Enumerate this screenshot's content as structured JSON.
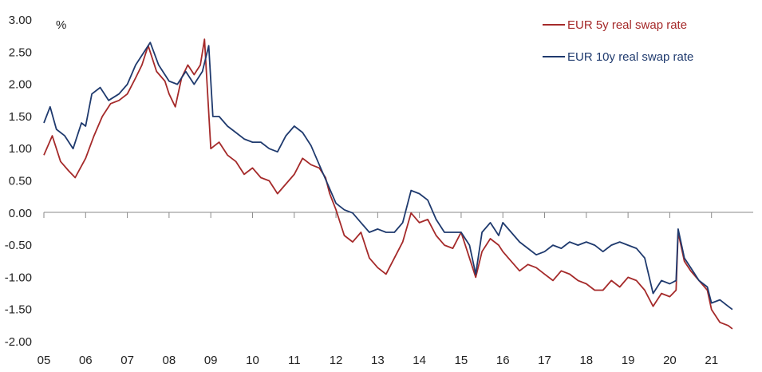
{
  "chart_data": {
    "type": "line",
    "unit_label": "%",
    "ylim": [
      -2.0,
      3.0
    ],
    "yticks": [
      3.0,
      2.5,
      2.0,
      1.5,
      1.0,
      0.5,
      0.0,
      -0.5,
      -1.0,
      -1.5,
      -2.0
    ],
    "ytick_labels": [
      "3.00",
      "2.50",
      "2.00",
      "1.50",
      "1.00",
      "0.50",
      "0.00",
      "-0.50",
      "-1.00",
      "-1.50",
      "-2.00"
    ],
    "xlim": [
      2005.0,
      2022.0
    ],
    "xticks": [
      2005,
      2006,
      2007,
      2008,
      2009,
      2010,
      2011,
      2012,
      2013,
      2014,
      2015,
      2016,
      2017,
      2018,
      2019,
      2020,
      2021
    ],
    "xtick_labels": [
      "05",
      "06",
      "07",
      "08",
      "09",
      "10",
      "11",
      "12",
      "13",
      "14",
      "15",
      "16",
      "17",
      "18",
      "19",
      "20",
      "21"
    ],
    "grid": false,
    "legend_position": "top-right",
    "series": [
      {
        "name": "EUR 5y real swap rate",
        "color": "#a52a2a",
        "points": [
          [
            2005.0,
            0.9
          ],
          [
            2005.2,
            1.2
          ],
          [
            2005.4,
            0.8
          ],
          [
            2005.6,
            0.65
          ],
          [
            2005.75,
            0.55
          ],
          [
            2006.0,
            0.85
          ],
          [
            2006.2,
            1.2
          ],
          [
            2006.4,
            1.5
          ],
          [
            2006.6,
            1.7
          ],
          [
            2006.8,
            1.75
          ],
          [
            2007.0,
            1.85
          ],
          [
            2007.2,
            2.1
          ],
          [
            2007.35,
            2.3
          ],
          [
            2007.5,
            2.6
          ],
          [
            2007.7,
            2.2
          ],
          [
            2007.9,
            2.05
          ],
          [
            2008.0,
            1.85
          ],
          [
            2008.15,
            1.65
          ],
          [
            2008.3,
            2.1
          ],
          [
            2008.45,
            2.3
          ],
          [
            2008.6,
            2.15
          ],
          [
            2008.75,
            2.3
          ],
          [
            2008.85,
            2.7
          ],
          [
            2009.0,
            1.0
          ],
          [
            2009.2,
            1.1
          ],
          [
            2009.4,
            0.9
          ],
          [
            2009.6,
            0.8
          ],
          [
            2009.8,
            0.6
          ],
          [
            2010.0,
            0.7
          ],
          [
            2010.2,
            0.55
          ],
          [
            2010.4,
            0.5
          ],
          [
            2010.6,
            0.3
          ],
          [
            2010.8,
            0.45
          ],
          [
            2011.0,
            0.6
          ],
          [
            2011.2,
            0.85
          ],
          [
            2011.4,
            0.75
          ],
          [
            2011.6,
            0.7
          ],
          [
            2011.75,
            0.55
          ],
          [
            2011.85,
            0.3
          ],
          [
            2012.0,
            0.05
          ],
          [
            2012.2,
            -0.35
          ],
          [
            2012.4,
            -0.45
          ],
          [
            2012.6,
            -0.3
          ],
          [
            2012.8,
            -0.7
          ],
          [
            2013.0,
            -0.85
          ],
          [
            2013.2,
            -0.95
          ],
          [
            2013.4,
            -0.7
          ],
          [
            2013.6,
            -0.45
          ],
          [
            2013.8,
            0.0
          ],
          [
            2014.0,
            -0.15
          ],
          [
            2014.2,
            -0.1
          ],
          [
            2014.4,
            -0.35
          ],
          [
            2014.6,
            -0.5
          ],
          [
            2014.8,
            -0.55
          ],
          [
            2015.0,
            -0.3
          ],
          [
            2015.2,
            -0.7
          ],
          [
            2015.35,
            -1.0
          ],
          [
            2015.5,
            -0.6
          ],
          [
            2015.7,
            -0.4
          ],
          [
            2015.9,
            -0.5
          ],
          [
            2016.0,
            -0.6
          ],
          [
            2016.2,
            -0.75
          ],
          [
            2016.4,
            -0.9
          ],
          [
            2016.6,
            -0.8
          ],
          [
            2016.8,
            -0.85
          ],
          [
            2017.0,
            -0.95
          ],
          [
            2017.2,
            -1.05
          ],
          [
            2017.4,
            -0.9
          ],
          [
            2017.6,
            -0.95
          ],
          [
            2017.8,
            -1.05
          ],
          [
            2018.0,
            -1.1
          ],
          [
            2018.2,
            -1.2
          ],
          [
            2018.4,
            -1.2
          ],
          [
            2018.6,
            -1.05
          ],
          [
            2018.8,
            -1.15
          ],
          [
            2019.0,
            -1.0
          ],
          [
            2019.2,
            -1.05
          ],
          [
            2019.4,
            -1.2
          ],
          [
            2019.6,
            -1.45
          ],
          [
            2019.8,
            -1.25
          ],
          [
            2020.0,
            -1.3
          ],
          [
            2020.15,
            -1.2
          ],
          [
            2020.2,
            -0.3
          ],
          [
            2020.35,
            -0.75
          ],
          [
            2020.5,
            -0.9
          ],
          [
            2020.7,
            -1.05
          ],
          [
            2020.9,
            -1.2
          ],
          [
            2021.0,
            -1.5
          ],
          [
            2021.2,
            -1.7
          ],
          [
            2021.4,
            -1.75
          ],
          [
            2021.5,
            -1.8
          ]
        ]
      },
      {
        "name": "EUR 10y real swap rate",
        "color": "#1f3a6e",
        "points": [
          [
            2005.0,
            1.4
          ],
          [
            2005.15,
            1.65
          ],
          [
            2005.3,
            1.3
          ],
          [
            2005.5,
            1.2
          ],
          [
            2005.7,
            1.0
          ],
          [
            2005.9,
            1.4
          ],
          [
            2006.0,
            1.35
          ],
          [
            2006.15,
            1.85
          ],
          [
            2006.35,
            1.95
          ],
          [
            2006.55,
            1.75
          ],
          [
            2006.8,
            1.85
          ],
          [
            2007.0,
            2.0
          ],
          [
            2007.2,
            2.3
          ],
          [
            2007.4,
            2.5
          ],
          [
            2007.55,
            2.65
          ],
          [
            2007.75,
            2.3
          ],
          [
            2008.0,
            2.05
          ],
          [
            2008.2,
            2.0
          ],
          [
            2008.4,
            2.2
          ],
          [
            2008.6,
            2.0
          ],
          [
            2008.8,
            2.2
          ],
          [
            2008.95,
            2.6
          ],
          [
            2009.05,
            1.5
          ],
          [
            2009.2,
            1.5
          ],
          [
            2009.4,
            1.35
          ],
          [
            2009.6,
            1.25
          ],
          [
            2009.8,
            1.15
          ],
          [
            2010.0,
            1.1
          ],
          [
            2010.2,
            1.1
          ],
          [
            2010.4,
            1.0
          ],
          [
            2010.6,
            0.95
          ],
          [
            2010.8,
            1.2
          ],
          [
            2011.0,
            1.35
          ],
          [
            2011.2,
            1.25
          ],
          [
            2011.4,
            1.05
          ],
          [
            2011.6,
            0.75
          ],
          [
            2011.8,
            0.45
          ],
          [
            2012.0,
            0.15
          ],
          [
            2012.2,
            0.05
          ],
          [
            2012.4,
            0.0
          ],
          [
            2012.6,
            -0.15
          ],
          [
            2012.8,
            -0.3
          ],
          [
            2013.0,
            -0.25
          ],
          [
            2013.2,
            -0.3
          ],
          [
            2013.4,
            -0.3
          ],
          [
            2013.6,
            -0.15
          ],
          [
            2013.8,
            0.35
          ],
          [
            2014.0,
            0.3
          ],
          [
            2014.2,
            0.2
          ],
          [
            2014.4,
            -0.1
          ],
          [
            2014.6,
            -0.3
          ],
          [
            2014.8,
            -0.3
          ],
          [
            2015.0,
            -0.3
          ],
          [
            2015.2,
            -0.5
          ],
          [
            2015.35,
            -0.95
          ],
          [
            2015.5,
            -0.3
          ],
          [
            2015.7,
            -0.15
          ],
          [
            2015.9,
            -0.35
          ],
          [
            2016.0,
            -0.15
          ],
          [
            2016.2,
            -0.3
          ],
          [
            2016.4,
            -0.45
          ],
          [
            2016.6,
            -0.55
          ],
          [
            2016.8,
            -0.65
          ],
          [
            2017.0,
            -0.6
          ],
          [
            2017.2,
            -0.5
          ],
          [
            2017.4,
            -0.55
          ],
          [
            2017.6,
            -0.45
          ],
          [
            2017.8,
            -0.5
          ],
          [
            2018.0,
            -0.45
          ],
          [
            2018.2,
            -0.5
          ],
          [
            2018.4,
            -0.6
          ],
          [
            2018.6,
            -0.5
          ],
          [
            2018.8,
            -0.45
          ],
          [
            2019.0,
            -0.5
          ],
          [
            2019.2,
            -0.55
          ],
          [
            2019.4,
            -0.7
          ],
          [
            2019.6,
            -1.25
          ],
          [
            2019.8,
            -1.05
          ],
          [
            2020.0,
            -1.1
          ],
          [
            2020.15,
            -1.05
          ],
          [
            2020.2,
            -0.25
          ],
          [
            2020.35,
            -0.7
          ],
          [
            2020.5,
            -0.85
          ],
          [
            2020.7,
            -1.05
          ],
          [
            2020.9,
            -1.15
          ],
          [
            2021.0,
            -1.4
          ],
          [
            2021.2,
            -1.35
          ],
          [
            2021.4,
            -1.45
          ],
          [
            2021.5,
            -1.5
          ]
        ]
      }
    ]
  }
}
